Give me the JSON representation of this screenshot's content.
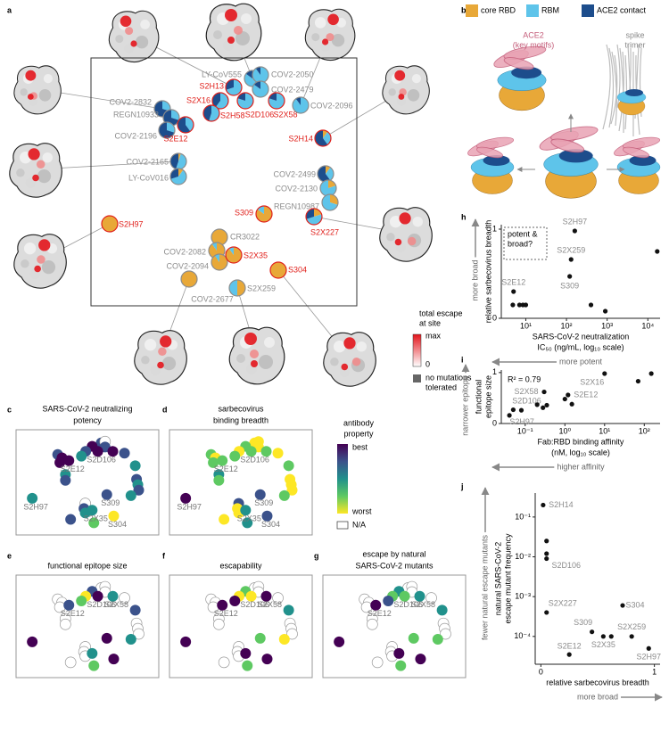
{
  "panel_labels": [
    "a",
    "b",
    "c",
    "d",
    "e",
    "f",
    "g",
    "h",
    "i",
    "j"
  ],
  "panel_a": {
    "antibodies": [
      {
        "name": "LY-CoV555",
        "label_color": "#8c8c8c",
        "epitope": [
          0,
          0.85,
          0.15
        ]
      },
      {
        "name": "COV2-2050",
        "label_color": "#8c8c8c",
        "epitope": [
          0,
          0.9,
          0.1
        ]
      },
      {
        "name": "COV2-2479",
        "label_color": "#8c8c8c",
        "epitope": [
          0,
          0.85,
          0.15
        ]
      },
      {
        "name": "S2H13",
        "label_color": "#e0201b",
        "epitope": [
          0,
          0.7,
          0.3
        ]
      },
      {
        "name": "S2X16",
        "label_color": "#e0201b",
        "epitope": [
          0,
          0.6,
          0.4
        ]
      },
      {
        "name": "S2H58",
        "label_color": "#e0201b",
        "epitope": [
          0,
          0.55,
          0.45
        ]
      },
      {
        "name": "S2D106",
        "label_color": "#e0201b",
        "epitope": [
          0,
          0.8,
          0.2
        ]
      },
      {
        "name": "S2X58",
        "label_color": "#e0201b",
        "epitope": [
          0,
          0.8,
          0.2
        ]
      },
      {
        "name": "COV2-2096",
        "label_color": "#8c8c8c",
        "epitope": [
          0,
          0.9,
          0.1
        ]
      },
      {
        "name": "COV2-2832",
        "label_color": "#8c8c8c",
        "epitope": [
          0,
          0.3,
          0.7
        ]
      },
      {
        "name": "REGN10933",
        "label_color": "#8c8c8c",
        "epitope": [
          0,
          0.3,
          0.7
        ]
      },
      {
        "name": "COV2-2196",
        "label_color": "#8c8c8c",
        "epitope": [
          0,
          0.3,
          0.7
        ]
      },
      {
        "name": "S2E12",
        "label_color": "#e0201b",
        "epitope": [
          0,
          0.4,
          0.6
        ]
      },
      {
        "name": "S2H14",
        "label_color": "#e0201b",
        "epitope": [
          0.1,
          0.3,
          0.6
        ]
      },
      {
        "name": "COV2-2165",
        "label_color": "#8c8c8c",
        "epitope": [
          0.05,
          0.5,
          0.45
        ]
      },
      {
        "name": "LY-CoV016",
        "label_color": "#8c8c8c",
        "epitope": [
          0.1,
          0.6,
          0.3
        ]
      },
      {
        "name": "COV2-2499",
        "label_color": "#8c8c8c",
        "epitope": [
          0.1,
          0.3,
          0.6
        ]
      },
      {
        "name": "COV2-2130",
        "label_color": "#8c8c8c",
        "epitope": [
          0.2,
          0.8,
          0
        ]
      },
      {
        "name": "REGN10987",
        "label_color": "#8c8c8c",
        "epitope": [
          0.3,
          0.7,
          0
        ]
      },
      {
        "name": "S309",
        "label_color": "#e0201b",
        "epitope": [
          0.85,
          0.15,
          0
        ]
      },
      {
        "name": "S2X227",
        "label_color": "#e0201b",
        "epitope": [
          0.2,
          0.5,
          0.3
        ]
      },
      {
        "name": "S2H97",
        "label_color": "#e0201b",
        "epitope": [
          1,
          0,
          0
        ]
      },
      {
        "name": "CR3022",
        "label_color": "#8c8c8c",
        "epitope": [
          1,
          0,
          0
        ]
      },
      {
        "name": "COV2-2082",
        "label_color": "#8c8c8c",
        "epitope": [
          0.9,
          0.1,
          0
        ]
      },
      {
        "name": "COV2-2094",
        "label_color": "#8c8c8c",
        "epitope": [
          0.9,
          0.1,
          0
        ]
      },
      {
        "name": "COV2-2677",
        "label_color": "#8c8c8c",
        "epitope": [
          1,
          0,
          0
        ]
      },
      {
        "name": "S2X35",
        "label_color": "#e0201b",
        "epitope": [
          0.9,
          0.1,
          0
        ]
      },
      {
        "name": "S304",
        "label_color": "#e0201b",
        "epitope": [
          1,
          0,
          0
        ]
      },
      {
        "name": "S2X259",
        "label_color": "#8c8c8c",
        "epitope": [
          0.5,
          0.5,
          0
        ]
      }
    ]
  },
  "panel_b": {
    "legend": [
      {
        "name": "core RBD",
        "color": "#e8a838"
      },
      {
        "name": "RBM",
        "color": "#5ec4ea"
      },
      {
        "name": "ACE2 contact",
        "color": "#1d4d8c"
      }
    ],
    "ace2_label": [
      "ACE2",
      "(key motifs)"
    ],
    "spike_label": [
      "spike",
      "trimer"
    ]
  },
  "escape_legend": {
    "title": [
      "total escape",
      "at site"
    ],
    "max": "max",
    "min": "0",
    "gradient": [
      "#ffffff",
      "#e3151c"
    ],
    "none": [
      "no mutations",
      "tolerated"
    ],
    "none_color": "#666666"
  },
  "property_panels": [
    {
      "title": [
        "SARS-CoV-2 neutralizing",
        "potency"
      ],
      "labels": [
        "S2D106",
        "S2E12",
        "S2H97",
        "S309",
        "S2X35",
        "S304"
      ],
      "colors": [
        "#3b528b",
        null,
        "#3b528b",
        "#440154",
        "#3b528b",
        "#21918c",
        "#440154",
        "#440154",
        "#3b528b",
        "#3b528b",
        "#440154",
        "#440154",
        "#440154",
        "#21918c",
        "#21918c",
        "#3b528b",
        "#3b528b",
        "#21918c",
        "#3b528b",
        "#3b528b",
        "#21918c",
        "#21918c",
        null,
        "#3b528b",
        "#21918c",
        "#3b528b",
        "#21918c",
        "#fde725",
        "#5ec962"
      ]
    },
    {
      "title": [
        "sarbecovirus",
        "binding breadth"
      ],
      "labels": [
        "S2D106",
        "S2E12",
        "S2H97",
        "S309",
        "S2X35",
        "S304"
      ],
      "colors": [
        "#fde725",
        "#fde725",
        "#fde725",
        "#5ec962",
        "#fde725",
        "#5ec962",
        "#5ec962",
        "#5ec962",
        "#fde725",
        "#5ec962",
        "#fde725",
        "#5ec962",
        "#5ec962",
        "#5ec962",
        "#21918c",
        "#5ec962",
        "#fde725",
        "#fde725",
        "#fde725",
        "#3b528b",
        "#5ec962",
        "#440154",
        "#3b528b",
        "#fde725",
        "#fde725",
        "#fde725",
        "#21918c",
        "#3b528b",
        "#21918c"
      ]
    },
    {
      "title": [
        "functional epitope size"
      ],
      "labels": [
        "S2E12",
        "S2D106",
        "S2X58"
      ],
      "colors": [
        null,
        null,
        null,
        "#3b528b",
        "#fde725",
        "#5ec962",
        "#440154",
        "#21918c",
        null,
        null,
        null,
        null,
        "#3b528b",
        "#3b528b",
        null,
        null,
        null,
        null,
        null,
        "#440154",
        "#21918c",
        "#440154",
        null,
        null,
        null,
        null,
        "#21918c",
        "#440154",
        "#5ec962"
      ]
    },
    {
      "title": [
        "escapability"
      ],
      "labels": [
        "S2D106",
        "S2E12",
        "S2X58"
      ],
      "colors": [
        null,
        null,
        null,
        "#5ec962",
        "#fde725",
        "#440154",
        "#fde725",
        "#440154",
        null,
        null,
        null,
        null,
        "#440154",
        "#21918c",
        null,
        null,
        null,
        null,
        null,
        "#5ec962",
        "#fde725",
        "#440154",
        null,
        null,
        null,
        null,
        "#440154",
        "#440154",
        "#5ec962"
      ]
    },
    {
      "title": [
        "escape by natural",
        "SARS-CoV-2 mutants"
      ],
      "labels": [
        "S2D106",
        "S2E12",
        "S2X58"
      ],
      "colors": [
        null,
        null,
        null,
        "#21918c",
        "#5ec962",
        "#3b528b",
        "#5ec962",
        "#21918c",
        null,
        null,
        null,
        null,
        "#440154",
        "#21918c",
        null,
        null,
        null,
        null,
        null,
        "#5ec962",
        "#5ec962",
        "#440154",
        null,
        null,
        null,
        null,
        "#440154",
        "#440154",
        "#5ec962"
      ]
    }
  ],
  "property_legend": {
    "title": [
      "antibody",
      "property"
    ],
    "best": "best",
    "worst": "worst",
    "na": "N/A",
    "gradient": [
      "#fde725",
      "#5ec962",
      "#21918c",
      "#3b528b",
      "#440154"
    ]
  },
  "chart_data": [
    {
      "type": "scatter",
      "color": "#111111",
      "label_color": "#8c8c8c",
      "x": [
        4.8,
        5,
        7,
        8.5,
        10,
        120,
        130,
        160,
        400,
        900,
        17000
      ],
      "values": [
        0.15,
        0.3,
        0.15,
        0.15,
        0.15,
        0.47,
        0.66,
        0.98,
        0.15,
        0.08,
        0.75
      ],
      "point_labels": [
        null,
        "S2E12",
        null,
        null,
        null,
        "S309",
        "S2X259",
        "S2H97",
        null,
        null,
        null
      ],
      "xlog": true,
      "xlim": [
        2.5,
        20000
      ],
      "xticks": [
        {
          "value": 10,
          "label": "10¹"
        },
        {
          "value": 100,
          "label": "10²"
        },
        {
          "value": 1000,
          "label": "10³"
        },
        {
          "value": 10000,
          "label": "10⁴"
        }
      ],
      "ylim": [
        0,
        1.05
      ],
      "yticks": [
        0,
        1
      ],
      "xlabel": [
        "SARS-CoV-2 neutralization",
        "IC₅₀ (ng/mL, log₁₀ scale)"
      ],
      "ylabel": [
        "relative sarbecovirus breadth"
      ],
      "x_direction": {
        "label": "more potent",
        "arrow": "left"
      },
      "y_direction": {
        "label": "more broad",
        "arrow": "up"
      },
      "annotation": [
        "potent &",
        "broad?"
      ],
      "annotation_box": true
    },
    {
      "type": "scatter",
      "color": "#111111",
      "label_color": "#8c8c8c",
      "x": [
        0.04,
        0.05,
        0.08,
        0.2,
        0.28,
        0.35,
        0.3,
        1.0,
        1.2,
        1.5,
        10,
        70,
        150
      ],
      "values": [
        0.16,
        0.27,
        0.26,
        0.37,
        0.31,
        0.36,
        0.62,
        0.48,
        0.56,
        0.38,
        0.98,
        0.83,
        0.98
      ],
      "point_labels": [
        "S2H97",
        null,
        "S2D106",
        null,
        null,
        null,
        "S2X58",
        null,
        "S2E12",
        null,
        "S2X16",
        null,
        null
      ],
      "xlog": true,
      "xlim": [
        0.025,
        250
      ],
      "xticks": [
        {
          "value": 0.1,
          "label": "10⁻¹"
        },
        {
          "value": 1,
          "label": "10⁰"
        },
        {
          "value": 10,
          "label": "10¹"
        },
        {
          "value": 100,
          "label": "10²"
        }
      ],
      "ylim": [
        0,
        1.05
      ],
      "yticks": [
        0,
        1
      ],
      "xlabel": [
        "Fab:RBD binding affinity",
        "(nM, log₁₀ scale)"
      ],
      "ylabel": [
        "functional",
        "epitope size"
      ],
      "x_direction": {
        "label": "higher affinity",
        "arrow": "left"
      },
      "y_direction": {
        "label": "narrower epitope",
        "arrow": "up"
      },
      "annotation": [
        "R² = 0.79"
      ],
      "annotation_box": false
    },
    {
      "type": "scatter",
      "color": "#111111",
      "label_color": "#8c8c8c",
      "x": [
        0.02,
        0.05,
        0.05,
        0.05,
        0.05,
        0.25,
        0.45,
        0.55,
        0.72,
        0.8,
        0.95,
        0.62
      ],
      "values": [
        0.2,
        0.025,
        0.012,
        0.009,
        0.0004,
        3.5e-05,
        0.00013,
        0.0001,
        0.0006,
        0.0001,
        5e-05,
        0.0001
      ],
      "point_labels": [
        "S2H14",
        null,
        null,
        "S2D106",
        "S2X227",
        "S2E12",
        "S309",
        "S2X35",
        "S304",
        "S2X259",
        "S2H97",
        null
      ],
      "ylog": true,
      "ylim": [
        2e-05,
        0.4
      ],
      "yticks": [
        {
          "value": 0.1,
          "label": "10⁻¹"
        },
        {
          "value": 0.01,
          "label": "10⁻²"
        },
        {
          "value": 0.001,
          "label": "10⁻³"
        },
        {
          "value": 0.0001,
          "label": "10⁻⁴"
        }
      ],
      "xlim": [
        -0.05,
        1.05
      ],
      "xticks": [
        0,
        1
      ],
      "xlabel": [
        "relative sarbecovirus breadth"
      ],
      "ylabel": [
        "natural SARS-CoV-2",
        "escape mutant frequency"
      ],
      "x_direction": {
        "label": "more broad",
        "arrow": "right"
      },
      "y_direction": {
        "label": "fewer natural escape mutants",
        "arrow": "up"
      },
      "annotation": [],
      "annotation_box": false
    }
  ]
}
